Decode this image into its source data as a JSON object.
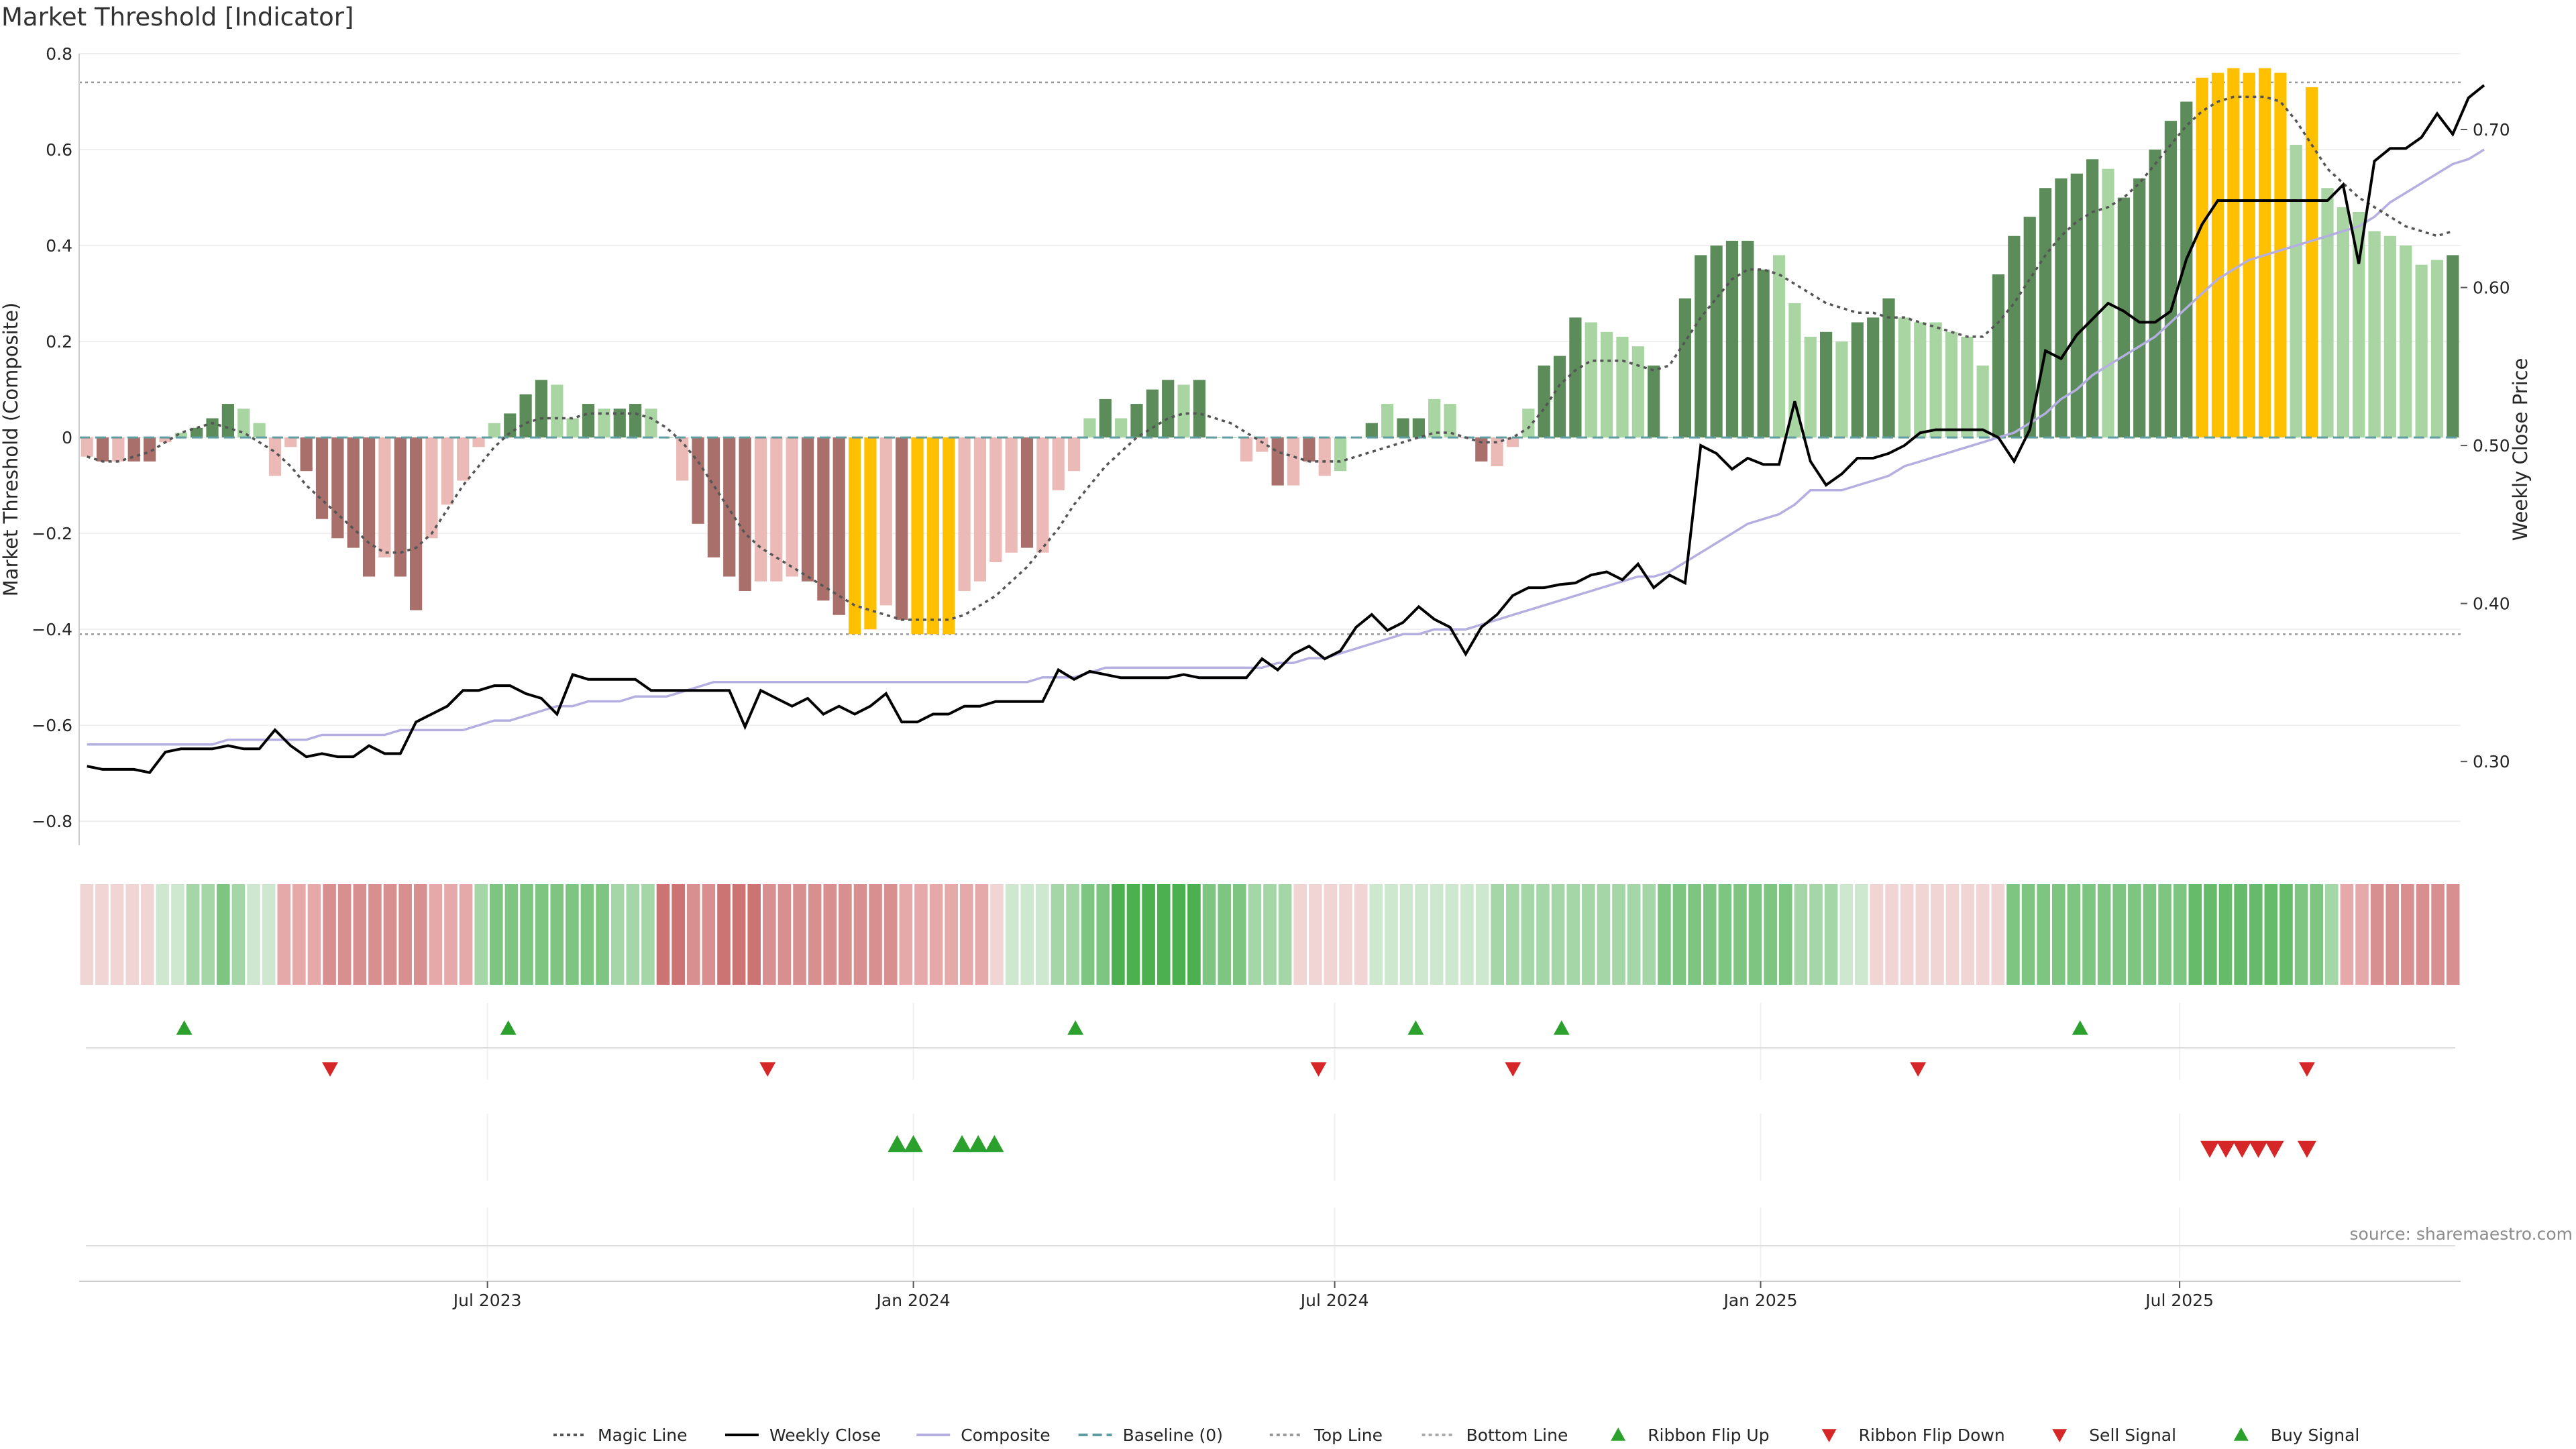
{
  "title": "Market Threshold [Indicator]",
  "source": "source: sharemaestro.com",
  "legend": [
    {
      "label": "Magic Line",
      "icon": "dotted-line-icon",
      "color": "#555555"
    },
    {
      "label": "Weekly Close",
      "icon": "solid-line-icon",
      "color": "#000000"
    },
    {
      "label": "Composite",
      "icon": "solid-line-icon",
      "color": "#b4afe0"
    },
    {
      "label": "Baseline (0)",
      "icon": "dashed-line-icon",
      "color": "#5f9ea0"
    },
    {
      "label": "Top Line",
      "icon": "dotted-line-icon",
      "color": "#999999"
    },
    {
      "label": "Bottom Line",
      "icon": "dotted-line-icon",
      "color": "#aaaaaa"
    },
    {
      "label": "Ribbon Flip Up",
      "icon": "triangle-up-icon",
      "color": "#2ca02c"
    },
    {
      "label": "Ribbon Flip Down",
      "icon": "triangle-down-icon",
      "color": "#d62728"
    },
    {
      "label": "Sell Signal",
      "icon": "triangle-down-icon",
      "color": "#d62728"
    },
    {
      "label": "Buy Signal",
      "icon": "triangle-up-icon",
      "color": "#2ca02c"
    }
  ],
  "chart_data": {
    "type": "bar",
    "title": "Market Threshold [Indicator]",
    "x_type": "weekly dates",
    "x_range": [
      "2023-01-09",
      "2025-10-27"
    ],
    "x_ticks": [
      {
        "label": "Jul 2023",
        "date": "2023-07-01"
      },
      {
        "label": "Jan 2024",
        "date": "2024-01-01"
      },
      {
        "label": "Jul 2024",
        "date": "2024-07-01"
      },
      {
        "label": "Jan 2025",
        "date": "2025-01-01"
      },
      {
        "label": "Jul 2025",
        "date": "2025-07-01"
      }
    ],
    "ylabel": "Market Threshold (Composite)",
    "ylim": [
      -0.85,
      0.8
    ],
    "y_ticks": [
      0.8,
      0.6,
      0.4,
      0.2,
      0,
      -0.2,
      -0.4,
      -0.6,
      -0.8
    ],
    "y_tick_labels": [
      "0.8",
      "0.6",
      "0.4",
      "0.2",
      "0",
      "−0.2",
      "−0.4",
      "−0.6",
      "−0.8"
    ],
    "y2label": "Weekly Close Price",
    "y2lim": [
      0.247,
      0.748
    ],
    "y2_ticks": [
      0.7,
      0.6,
      0.5,
      0.4,
      0.3
    ],
    "y2_tick_labels": [
      "0.70",
      "0.60",
      "0.50",
      "0.40",
      "0.30"
    ],
    "top_line": 0.74,
    "bottom_line": -0.41,
    "baseline": 0,
    "grid": true,
    "legend_position": "bottom-center",
    "bar_colors": {
      "strong_positive": "#5b8c5a",
      "weak_positive": "#a8d5a2",
      "strong_negative": "#a86f6b",
      "weak_negative": "#ebbab6",
      "extreme": "#ffc000"
    },
    "composite_bars": [
      -0.04,
      -0.05,
      -0.05,
      -0.05,
      -0.05,
      -0.01,
      0.01,
      0.02,
      0.04,
      0.07,
      0.06,
      0.03,
      -0.08,
      -0.02,
      -0.07,
      -0.17,
      -0.21,
      -0.23,
      -0.29,
      -0.25,
      -0.29,
      -0.36,
      -0.21,
      -0.14,
      -0.09,
      -0.02,
      0.03,
      0.05,
      0.09,
      0.12,
      0.11,
      0.04,
      0.07,
      0.06,
      0.06,
      0.07,
      0.06,
      0.0,
      -0.09,
      -0.18,
      -0.25,
      -0.29,
      -0.32,
      -0.3,
      -0.3,
      -0.29,
      -0.3,
      -0.34,
      -0.37,
      -0.41,
      -0.4,
      -0.35,
      -0.38,
      -0.41,
      -0.41,
      -0.41,
      -0.32,
      -0.3,
      -0.26,
      -0.24,
      -0.23,
      -0.24,
      -0.11,
      -0.07,
      0.04,
      0.08,
      0.04,
      0.07,
      0.1,
      0.12,
      0.11,
      0.12,
      0.0,
      0.0,
      -0.05,
      -0.03,
      -0.1,
      -0.1,
      -0.05,
      -0.08,
      -0.07,
      0.0,
      0.03,
      0.07,
      0.04,
      0.04,
      0.08,
      0.07,
      0.0,
      -0.05,
      -0.06,
      -0.02,
      0.06,
      0.15,
      0.17,
      0.25,
      0.24,
      0.22,
      0.21,
      0.19,
      0.15,
      0.0,
      0.29,
      0.38,
      0.4,
      0.41,
      0.41,
      0.35,
      0.38,
      0.28,
      0.21,
      0.22,
      0.2,
      0.24,
      0.25,
      0.29,
      0.25,
      0.24,
      0.24,
      0.22,
      0.21,
      0.15,
      0.34,
      0.42,
      0.46,
      0.52,
      0.54,
      0.55,
      0.58,
      0.56,
      0.5,
      0.54,
      0.6,
      0.66,
      0.7,
      0.75,
      0.76,
      0.77,
      0.76,
      0.77,
      0.76,
      0.61,
      0.73,
      0.52,
      0.48,
      0.47,
      0.43,
      0.42,
      0.4,
      0.36,
      0.37,
      0.38
    ],
    "bar_color_keys": [
      "weak_negative",
      "strong_negative",
      "weak_negative",
      "strong_negative",
      "strong_negative",
      "weak_negative",
      "weak_positive",
      "strong_positive",
      "strong_positive",
      "strong_positive",
      "weak_positive",
      "weak_positive",
      "weak_negative",
      "weak_negative",
      "strong_negative",
      "strong_negative",
      "strong_negative",
      "strong_negative",
      "strong_negative",
      "weak_negative",
      "strong_negative",
      "strong_negative",
      "weak_negative",
      "weak_negative",
      "weak_negative",
      "weak_negative",
      "weak_positive",
      "strong_positive",
      "strong_positive",
      "strong_positive",
      "weak_positive",
      "weak_positive",
      "strong_positive",
      "weak_positive",
      "strong_positive",
      "strong_positive",
      "weak_positive",
      "weak_positive",
      "weak_negative",
      "strong_negative",
      "strong_negative",
      "strong_negative",
      "strong_negative",
      "weak_negative",
      "weak_negative",
      "weak_negative",
      "strong_negative",
      "strong_negative",
      "strong_negative",
      "extreme",
      "extreme",
      "weak_negative",
      "strong_negative",
      "extreme",
      "extreme",
      "extreme",
      "weak_negative",
      "weak_negative",
      "weak_negative",
      "weak_negative",
      "strong_negative",
      "weak_negative",
      "weak_negative",
      "weak_negative",
      "weak_positive",
      "strong_positive",
      "weak_positive",
      "strong_positive",
      "strong_positive",
      "strong_positive",
      "weak_positive",
      "strong_positive",
      "weak_positive",
      "weak_positive",
      "weak_negative",
      "weak_negative",
      "strong_negative",
      "weak_negative",
      "strong_negative",
      "weak_negative",
      "weak_positive",
      "weak_positive",
      "strong_positive",
      "weak_positive",
      "strong_positive",
      "strong_positive",
      "weak_positive",
      "weak_positive",
      "weak_negative",
      "strong_negative",
      "weak_negative",
      "weak_negative",
      "weak_positive",
      "strong_positive",
      "strong_positive",
      "strong_positive",
      "weak_positive",
      "weak_positive",
      "weak_positive",
      "weak_positive",
      "strong_positive",
      "weak_positive",
      "strong_positive",
      "strong_positive",
      "strong_positive",
      "strong_positive",
      "strong_positive",
      "strong_positive",
      "weak_positive",
      "weak_positive",
      "weak_positive",
      "strong_positive",
      "weak_positive",
      "strong_positive",
      "strong_positive",
      "strong_positive",
      "weak_positive",
      "weak_positive",
      "weak_positive",
      "weak_positive",
      "weak_positive",
      "weak_positive",
      "strong_positive",
      "strong_positive",
      "strong_positive",
      "strong_positive",
      "strong_positive",
      "strong_positive",
      "strong_positive",
      "weak_positive",
      "strong_positive",
      "strong_positive",
      "strong_positive",
      "strong_positive",
      "strong_positive",
      "extreme",
      "extreme",
      "extreme",
      "extreme",
      "extreme",
      "extreme",
      "weak_positive",
      "extreme",
      "weak_positive",
      "weak_positive",
      "weak_positive",
      "weak_positive",
      "weak_positive",
      "weak_positive",
      "weak_positive",
      "weak_positive",
      "strong_positive"
    ],
    "magic_line": [
      -0.04,
      -0.05,
      -0.05,
      -0.04,
      -0.03,
      -0.01,
      0.01,
      0.02,
      0.03,
      0.02,
      0.01,
      -0.01,
      -0.03,
      -0.06,
      -0.1,
      -0.13,
      -0.16,
      -0.19,
      -0.22,
      -0.24,
      -0.24,
      -0.23,
      -0.2,
      -0.15,
      -0.1,
      -0.06,
      -0.02,
      0.01,
      0.03,
      0.04,
      0.04,
      0.04,
      0.05,
      0.05,
      0.05,
      0.05,
      0.04,
      0.02,
      -0.01,
      -0.05,
      -0.1,
      -0.15,
      -0.2,
      -0.23,
      -0.25,
      -0.27,
      -0.29,
      -0.31,
      -0.33,
      -0.35,
      -0.36,
      -0.37,
      -0.38,
      -0.38,
      -0.38,
      -0.38,
      -0.37,
      -0.35,
      -0.33,
      -0.3,
      -0.27,
      -0.23,
      -0.19,
      -0.14,
      -0.1,
      -0.06,
      -0.03,
      0.0,
      0.02,
      0.04,
      0.05,
      0.05,
      0.04,
      0.03,
      0.01,
      -0.01,
      -0.03,
      -0.04,
      -0.05,
      -0.05,
      -0.05,
      -0.04,
      -0.03,
      -0.02,
      -0.01,
      0.0,
      0.01,
      0.01,
      0.0,
      -0.01,
      -0.01,
      0.0,
      0.02,
      0.06,
      0.11,
      0.14,
      0.16,
      0.16,
      0.16,
      0.15,
      0.14,
      0.15,
      0.2,
      0.25,
      0.29,
      0.33,
      0.35,
      0.35,
      0.34,
      0.32,
      0.3,
      0.28,
      0.27,
      0.26,
      0.26,
      0.25,
      0.25,
      0.24,
      0.23,
      0.22,
      0.21,
      0.21,
      0.24,
      0.28,
      0.33,
      0.38,
      0.42,
      0.45,
      0.47,
      0.48,
      0.5,
      0.53,
      0.57,
      0.61,
      0.65,
      0.68,
      0.7,
      0.71,
      0.71,
      0.71,
      0.7,
      0.66,
      0.61,
      0.56,
      0.53,
      0.5,
      0.48,
      0.46,
      0.44,
      0.43,
      0.42,
      0.43
    ],
    "composite_line": [
      -0.64,
      -0.64,
      -0.64,
      -0.64,
      -0.64,
      -0.64,
      -0.64,
      -0.64,
      -0.64,
      -0.63,
      -0.63,
      -0.63,
      -0.63,
      -0.63,
      -0.63,
      -0.62,
      -0.62,
      -0.62,
      -0.62,
      -0.62,
      -0.61,
      -0.61,
      -0.61,
      -0.61,
      -0.61,
      -0.6,
      -0.59,
      -0.59,
      -0.58,
      -0.57,
      -0.56,
      -0.56,
      -0.55,
      -0.55,
      -0.55,
      -0.54,
      -0.54,
      -0.54,
      -0.53,
      -0.52,
      -0.51,
      -0.51,
      -0.51,
      -0.51,
      -0.51,
      -0.51,
      -0.51,
      -0.51,
      -0.51,
      -0.51,
      -0.51,
      -0.51,
      -0.51,
      -0.51,
      -0.51,
      -0.51,
      -0.51,
      -0.51,
      -0.51,
      -0.51,
      -0.51,
      -0.5,
      -0.5,
      -0.5,
      -0.49,
      -0.48,
      -0.48,
      -0.48,
      -0.48,
      -0.48,
      -0.48,
      -0.48,
      -0.48,
      -0.48,
      -0.48,
      -0.48,
      -0.47,
      -0.47,
      -0.46,
      -0.46,
      -0.45,
      -0.44,
      -0.43,
      -0.42,
      -0.41,
      -0.41,
      -0.4,
      -0.4,
      -0.4,
      -0.39,
      -0.38,
      -0.37,
      -0.36,
      -0.35,
      -0.34,
      -0.33,
      -0.32,
      -0.31,
      -0.3,
      -0.29,
      -0.29,
      -0.28,
      -0.26,
      -0.24,
      -0.22,
      -0.2,
      -0.18,
      -0.17,
      -0.16,
      -0.14,
      -0.11,
      -0.11,
      -0.11,
      -0.1,
      -0.09,
      -0.08,
      -0.06,
      -0.05,
      -0.04,
      -0.03,
      -0.02,
      -0.01,
      0.0,
      0.01,
      0.03,
      0.05,
      0.08,
      0.1,
      0.13,
      0.15,
      0.17,
      0.19,
      0.21,
      0.24,
      0.27,
      0.3,
      0.33,
      0.35,
      0.37,
      0.38,
      0.39,
      0.4,
      0.41,
      0.42,
      0.43,
      0.44,
      0.46,
      0.49,
      0.51,
      0.53,
      0.55,
      0.57,
      0.58,
      0.6
    ],
    "weekly_close": [
      0.297,
      0.295,
      0.295,
      0.295,
      0.293,
      0.306,
      0.308,
      0.308,
      0.308,
      0.31,
      0.308,
      0.308,
      0.32,
      0.31,
      0.303,
      0.305,
      0.303,
      0.303,
      0.31,
      0.305,
      0.305,
      0.325,
      0.33,
      0.335,
      0.345,
      0.345,
      0.348,
      0.348,
      0.343,
      0.34,
      0.33,
      0.355,
      0.352,
      0.352,
      0.352,
      0.352,
      0.345,
      0.345,
      0.345,
      0.345,
      0.345,
      0.345,
      0.322,
      0.345,
      0.34,
      0.335,
      0.34,
      0.33,
      0.335,
      0.33,
      0.335,
      0.343,
      0.325,
      0.325,
      0.33,
      0.33,
      0.335,
      0.335,
      0.338,
      0.338,
      0.338,
      0.338,
      0.358,
      0.352,
      0.357,
      0.355,
      0.353,
      0.353,
      0.353,
      0.353,
      0.355,
      0.353,
      0.353,
      0.353,
      0.353,
      0.365,
      0.358,
      0.368,
      0.373,
      0.365,
      0.37,
      0.385,
      0.393,
      0.383,
      0.388,
      0.398,
      0.39,
      0.385,
      0.368,
      0.385,
      0.393,
      0.405,
      0.41,
      0.41,
      0.412,
      0.413,
      0.418,
      0.42,
      0.415,
      0.425,
      0.41,
      0.418,
      0.413,
      0.5,
      0.495,
      0.485,
      0.492,
      0.488,
      0.488,
      0.528,
      0.49,
      0.475,
      0.482,
      0.492,
      0.492,
      0.495,
      0.5,
      0.508,
      0.51,
      0.51,
      0.51,
      0.51,
      0.505,
      0.49,
      0.51,
      0.56,
      0.555,
      0.57,
      0.58,
      0.59,
      0.585,
      0.578,
      0.578,
      0.585,
      0.618,
      0.64,
      0.655,
      0.655,
      0.655,
      0.655,
      0.655,
      0.655,
      0.655,
      0.655,
      0.665,
      0.615,
      0.68,
      0.688,
      0.688,
      0.695,
      0.71,
      0.697,
      0.72,
      0.728
    ]
  },
  "ribbon": {
    "colors": [
      "#f1d4d4",
      "#f1d4d4",
      "#f1d4d4",
      "#f1d4d4",
      "#f1d4d4",
      "#cde8cf",
      "#cde8cf",
      "#a5d6a7",
      "#a5d6a7",
      "#7fc582",
      "#a5d6a7",
      "#cde8cf",
      "#cde8cf",
      "#e5a9a9",
      "#e5a9a9",
      "#e5a9a9",
      "#d88f8f",
      "#d88f8f",
      "#d88f8f",
      "#d88f8f",
      "#d88f8f",
      "#d88f8f",
      "#d88f8f",
      "#e5a9a9",
      "#e5a9a9",
      "#e5a9a9",
      "#a5d6a7",
      "#7fc582",
      "#7fc582",
      "#7fc582",
      "#7fc582",
      "#7fc582",
      "#7fc582",
      "#7fc582",
      "#7fc582",
      "#a5d6a7",
      "#a5d6a7",
      "#a5d6a7",
      "#cc7474",
      "#cc7474",
      "#d88f8f",
      "#d88f8f",
      "#cc7474",
      "#cc7474",
      "#cc7474",
      "#d88f8f",
      "#d88f8f",
      "#d88f8f",
      "#d88f8f",
      "#d88f8f",
      "#d88f8f",
      "#d88f8f",
      "#d88f8f",
      "#d88f8f",
      "#e5a9a9",
      "#e5a9a9",
      "#e5a9a9",
      "#e5a9a9",
      "#e5a9a9",
      "#e5a9a9",
      "#f1d4d4",
      "#cde8cf",
      "#cde8cf",
      "#cde8cf",
      "#a5d6a7",
      "#a5d6a7",
      "#7fc582",
      "#7fc582",
      "#4caf50",
      "#4caf50",
      "#4caf50",
      "#4caf50",
      "#4caf50",
      "#4caf50",
      "#7fc582",
      "#7fc582",
      "#7fc582",
      "#a5d6a7",
      "#a5d6a7",
      "#a5d6a7",
      "#f1d4d4",
      "#f1d4d4",
      "#f1d4d4",
      "#f1d4d4",
      "#f1d4d4",
      "#cde8cf",
      "#cde8cf",
      "#cde8cf",
      "#cde8cf",
      "#cde8cf",
      "#cde8cf",
      "#cde8cf",
      "#cde8cf",
      "#a5d6a7",
      "#a5d6a7",
      "#a5d6a7",
      "#a5d6a7",
      "#a5d6a7",
      "#a5d6a7",
      "#a5d6a7",
      "#a5d6a7",
      "#a5d6a7",
      "#a5d6a7",
      "#a5d6a7",
      "#7fc582",
      "#7fc582",
      "#7fc582",
      "#7fc582",
      "#7fc582",
      "#7fc582",
      "#7fc582",
      "#7fc582",
      "#7fc582",
      "#a5d6a7",
      "#a5d6a7",
      "#a5d6a7",
      "#cde8cf",
      "#cde8cf",
      "#f1d4d4",
      "#f1d4d4",
      "#f1d4d4",
      "#f1d4d4",
      "#f1d4d4",
      "#f1d4d4",
      "#f1d4d4",
      "#f1d4d4",
      "#f1d4d4",
      "#7fc582",
      "#7fc582",
      "#7fc582",
      "#7fc582",
      "#7fc582",
      "#7fc582",
      "#7fc582",
      "#7fc582",
      "#7fc582",
      "#7fc582",
      "#7fc582",
      "#7fc582",
      "#66bb6a",
      "#66bb6a",
      "#66bb6a",
      "#66bb6a",
      "#66bb6a",
      "#66bb6a",
      "#66bb6a",
      "#7fc582",
      "#7fc582",
      "#a5d6a7",
      "#e5a9a9",
      "#e5a9a9",
      "#d88f8f",
      "#d88f8f",
      "#d88f8f",
      "#d88f8f",
      "#d88f8f",
      "#d88f8f"
    ]
  },
  "ribbon_flip_up_dates": [
    "2023-02-20",
    "2023-07-10",
    "2024-03-11",
    "2024-08-05",
    "2024-10-07",
    "2025-05-19"
  ],
  "ribbon_flip_down_dates": [
    "2023-04-24",
    "2023-10-30",
    "2024-06-24",
    "2024-09-16",
    "2025-03-10",
    "2025-08-25"
  ],
  "buy_signal_dates": [
    "2023-12-25",
    "2024-01-01",
    "2024-01-22",
    "2024-01-29",
    "2024-02-05"
  ],
  "sell_signal_dates": [
    "2025-07-14",
    "2025-07-21",
    "2025-07-28",
    "2025-08-04",
    "2025-08-11",
    "2025-08-25"
  ]
}
